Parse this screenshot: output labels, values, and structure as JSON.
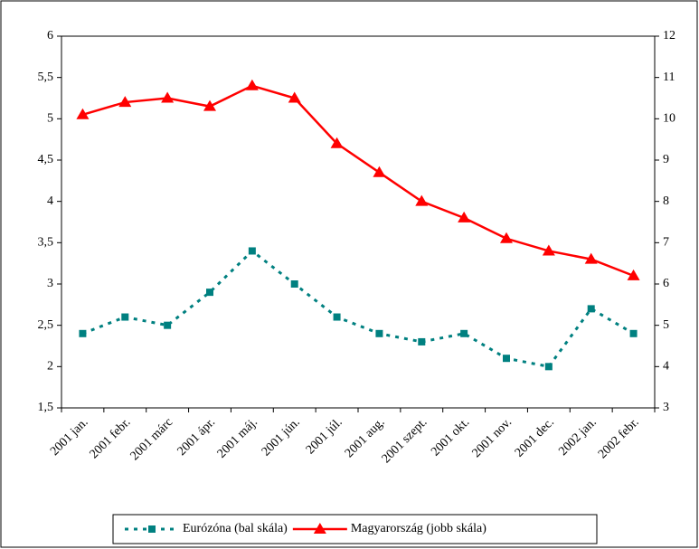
{
  "chart_data": {
    "type": "line",
    "categories": [
      "2001 jan.",
      "2001 febr.",
      "2001 márc",
      "2001 ápr.",
      "2001 máj.",
      "2001 jún.",
      "2001 júl.",
      "2001 aug.",
      "2001 szept.",
      "2001 okt.",
      "2001 nov.",
      "2001 dec.",
      "2002 jan.",
      "2002 febr."
    ],
    "series": [
      {
        "name": "Eurózóna (bal skála)",
        "color": "#008080",
        "values": [
          2.4,
          2.6,
          2.5,
          2.9,
          3.4,
          3.0,
          2.6,
          2.4,
          2.3,
          2.4,
          2.1,
          2.0,
          2.7,
          2.4
        ]
      },
      {
        "name": "Magyarország (jobb skála)",
        "color": "#ff0000",
        "axis": "y2",
        "values": [
          10.1,
          10.4,
          10.5,
          10.3,
          10.8,
          10.5,
          9.4,
          8.7,
          8.0,
          7.6,
          7.1,
          6.8,
          6.6,
          6.2
        ]
      }
    ],
    "ylim": [
      1.5,
      6
    ],
    "yticks": [
      {
        "value": 1.5,
        "label": "1,5"
      },
      2,
      {
        "value": 2.5,
        "label": "2,5"
      },
      3,
      {
        "value": 3.5,
        "label": "3,5"
      },
      4,
      {
        "value": 4.5,
        "label": "4,5"
      },
      5,
      {
        "value": 5.5,
        "label": "5,5"
      },
      6
    ],
    "y2lim": [
      3,
      12
    ],
    "y2ticks": [
      3,
      4,
      5,
      6,
      7,
      8,
      9,
      10,
      11,
      12
    ],
    "legend": "bottom"
  }
}
